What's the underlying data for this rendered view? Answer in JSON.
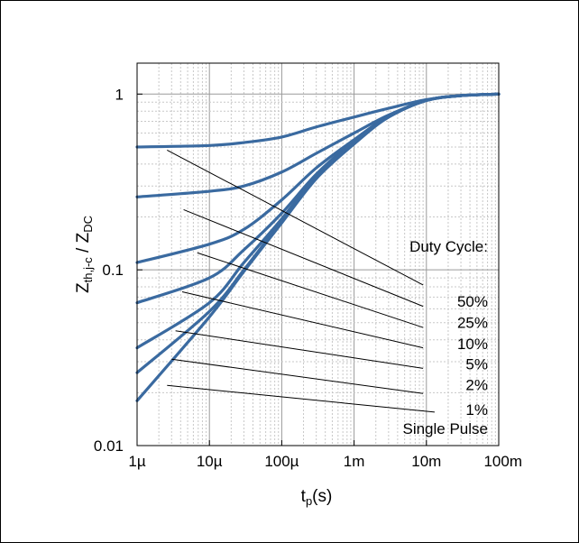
{
  "chart_data": {
    "type": "line",
    "x_scale": "log",
    "y_scale": "log",
    "xlim": [
      1e-06,
      0.1
    ],
    "ylim": [
      0.01,
      1.5
    ],
    "grid": true,
    "xlabel": {
      "main": "t",
      "sub": "p",
      "rest": "(s)"
    },
    "ylabel": {
      "main1": "Z",
      "sub1": "th,j-c",
      "mid": " / Z",
      "sub2": "DC"
    },
    "x_ticks": [
      {
        "value": 1e-06,
        "label": "1µ"
      },
      {
        "value": 1e-05,
        "label": "10µ"
      },
      {
        "value": 0.0001,
        "label": "100µ"
      },
      {
        "value": 0.001,
        "label": "1m"
      },
      {
        "value": 0.01,
        "label": "10m"
      },
      {
        "value": 0.1,
        "label": "100m"
      }
    ],
    "y_ticks": [
      {
        "value": 0.01,
        "label": "0.01"
      },
      {
        "value": 0.1,
        "label": "0.1"
      },
      {
        "value": 1,
        "label": "1"
      }
    ],
    "legend_title": "Duty Cycle:",
    "series_color": "#3a6aa0",
    "series": [
      {
        "name": "50%",
        "x": [
          1e-06,
          1e-05,
          3e-05,
          0.0001,
          0.0003,
          0.001,
          0.003,
          0.01,
          0.03,
          0.1
        ],
        "y": [
          0.5,
          0.51,
          0.53,
          0.57,
          0.65,
          0.74,
          0.83,
          0.93,
          0.98,
          1.0
        ]
      },
      {
        "name": "25%",
        "x": [
          1e-06,
          1e-05,
          3e-05,
          0.0001,
          0.0003,
          0.001,
          0.003,
          0.01,
          0.03,
          0.1
        ],
        "y": [
          0.26,
          0.28,
          0.3,
          0.36,
          0.46,
          0.6,
          0.76,
          0.92,
          0.98,
          1.0
        ]
      },
      {
        "name": "10%",
        "x": [
          1e-06,
          1e-05,
          3e-05,
          0.0001,
          0.0003,
          0.001,
          0.003,
          0.01,
          0.03,
          0.1
        ],
        "y": [
          0.11,
          0.14,
          0.17,
          0.25,
          0.38,
          0.55,
          0.75,
          0.92,
          0.98,
          1.0
        ]
      },
      {
        "name": "5%",
        "x": [
          1e-06,
          1e-05,
          3e-05,
          0.0001,
          0.0003,
          0.001,
          0.003,
          0.01,
          0.03,
          0.1
        ],
        "y": [
          0.065,
          0.09,
          0.13,
          0.21,
          0.35,
          0.54,
          0.74,
          0.92,
          0.98,
          1.0
        ]
      },
      {
        "name": "2%",
        "x": [
          1e-06,
          1e-05,
          3e-05,
          0.0001,
          0.0003,
          0.001,
          0.003,
          0.01,
          0.03,
          0.1
        ],
        "y": [
          0.036,
          0.065,
          0.11,
          0.195,
          0.34,
          0.53,
          0.74,
          0.92,
          0.98,
          1.0
        ]
      },
      {
        "name": "1%",
        "x": [
          1e-06,
          1e-05,
          3e-05,
          0.0001,
          0.0003,
          0.001,
          0.003,
          0.01,
          0.03,
          0.1
        ],
        "y": [
          0.026,
          0.058,
          0.1,
          0.19,
          0.335,
          0.53,
          0.74,
          0.92,
          0.98,
          1.0
        ]
      },
      {
        "name": "Single Pulse",
        "x": [
          1e-06,
          1e-05,
          3e-05,
          0.0001,
          0.0003,
          0.001,
          0.003,
          0.01,
          0.03,
          0.1
        ],
        "y": [
          0.018,
          0.054,
          0.098,
          0.185,
          0.33,
          0.52,
          0.74,
          0.92,
          0.98,
          1.0
        ]
      }
    ],
    "annotations": [
      {
        "label": "50%",
        "from": [
          2.6e-06,
          0.48
        ],
        "to": [
          0.009,
          0.082
        ]
      },
      {
        "label": "25%",
        "from": [
          4.4e-06,
          0.22
        ],
        "to": [
          0.009,
          0.062
        ]
      },
      {
        "label": "10%",
        "from": [
          6.8e-06,
          0.125
        ],
        "to": [
          0.009,
          0.047
        ]
      },
      {
        "label": "5%",
        "from": [
          4.2e-06,
          0.075
        ],
        "to": [
          0.009,
          0.036
        ]
      },
      {
        "label": "2%",
        "from": [
          3.4e-06,
          0.045
        ],
        "to": [
          0.009,
          0.0275
        ]
      },
      {
        "label": "1%",
        "from": [
          3e-06,
          0.031
        ],
        "to": [
          0.009,
          0.0198
        ]
      },
      {
        "label": "Single Pulse",
        "from": [
          2.6e-06,
          0.022
        ],
        "to": [
          0.013,
          0.0155
        ]
      }
    ]
  }
}
